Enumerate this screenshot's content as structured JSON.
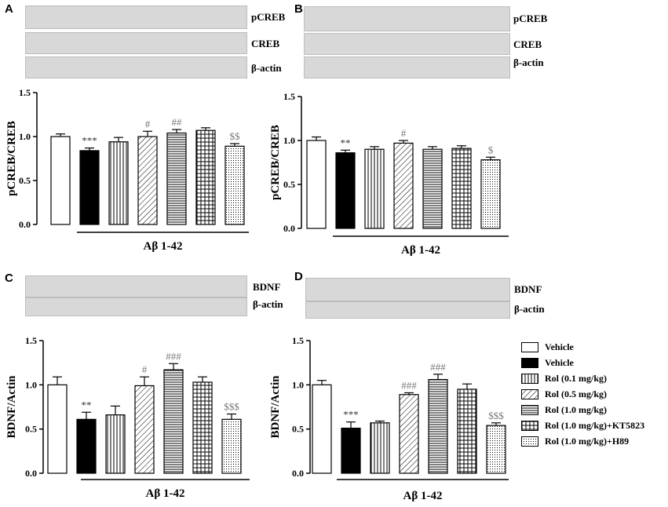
{
  "panels": {
    "A": {
      "letter": "A",
      "blots": [
        "pCREB",
        "CREB",
        "β-actin"
      ]
    },
    "B": {
      "letter": "B",
      "blots": [
        "pCREB",
        "CREB",
        "β-actin"
      ]
    },
    "C": {
      "letter": "C",
      "blots": [
        "BDNF",
        "β-actin"
      ]
    },
    "D": {
      "letter": "D",
      "blots": [
        "BDNF",
        "β-actin"
      ]
    }
  },
  "group_label": "Aβ 1-42",
  "legend": {
    "items": [
      {
        "label": "Vehicle",
        "pattern": "white"
      },
      {
        "label": "Vehicle",
        "pattern": "black"
      },
      {
        "label": "Rol (0.1 mg/kg)",
        "pattern": "vlines"
      },
      {
        "label": "Rol (0.5 mg/kg)",
        "pattern": "diag"
      },
      {
        "label": "Rol (1.0 mg/kg)",
        "pattern": "hlines"
      },
      {
        "label": "Rol (1.0 mg/kg)+KT5823",
        "pattern": "grid"
      },
      {
        "label": "Rol (1.0 mg/kg)+H89",
        "pattern": "dots"
      }
    ]
  },
  "chart_data": [
    {
      "panel": "A",
      "type": "bar",
      "ylabel": "pCREB/CREB",
      "ylim": [
        0,
        1.5
      ],
      "yticks": [
        "0.0",
        "0.5",
        "1.0",
        "1.5"
      ],
      "values": [
        1.0,
        0.84,
        0.94,
        1.0,
        1.04,
        1.07,
        0.89
      ],
      "errors": [
        0.03,
        0.03,
        0.05,
        0.06,
        0.04,
        0.03,
        0.03
      ],
      "annotations": [
        "",
        "***",
        "",
        "#",
        "##",
        "",
        "$$"
      ]
    },
    {
      "panel": "B",
      "type": "bar",
      "ylabel": "pCREB/CREB",
      "ylim": [
        0,
        1.5
      ],
      "yticks": [
        "0.0",
        "0.5",
        "1.0",
        "1.5"
      ],
      "values": [
        1.0,
        0.86,
        0.9,
        0.97,
        0.9,
        0.91,
        0.78
      ],
      "errors": [
        0.04,
        0.03,
        0.03,
        0.03,
        0.03,
        0.03,
        0.03
      ],
      "annotations": [
        "",
        "**",
        "",
        "#",
        "",
        "",
        "$"
      ]
    },
    {
      "panel": "C",
      "type": "bar",
      "ylabel": "BDNF/Actin",
      "ylim": [
        0,
        1.5
      ],
      "yticks": [
        "0.0",
        "0.5",
        "1.0",
        "1.5"
      ],
      "values": [
        1.0,
        0.61,
        0.66,
        0.99,
        1.17,
        1.03,
        0.61
      ],
      "errors": [
        0.09,
        0.08,
        0.1,
        0.1,
        0.07,
        0.06,
        0.06
      ],
      "annotations": [
        "",
        "**",
        "",
        "#",
        "###",
        "",
        "$$$"
      ]
    },
    {
      "panel": "D",
      "type": "bar",
      "ylabel": "BDNF/Actin",
      "ylim": [
        0,
        1.5
      ],
      "yticks": [
        "0.0",
        "0.5",
        "1.0",
        "1.5"
      ],
      "values": [
        1.0,
        0.51,
        0.57,
        0.89,
        1.06,
        0.95,
        0.54
      ],
      "errors": [
        0.05,
        0.07,
        0.02,
        0.02,
        0.06,
        0.06,
        0.03
      ],
      "annotations": [
        "",
        "***",
        "",
        "###",
        "###",
        "",
        "$$$"
      ]
    }
  ]
}
